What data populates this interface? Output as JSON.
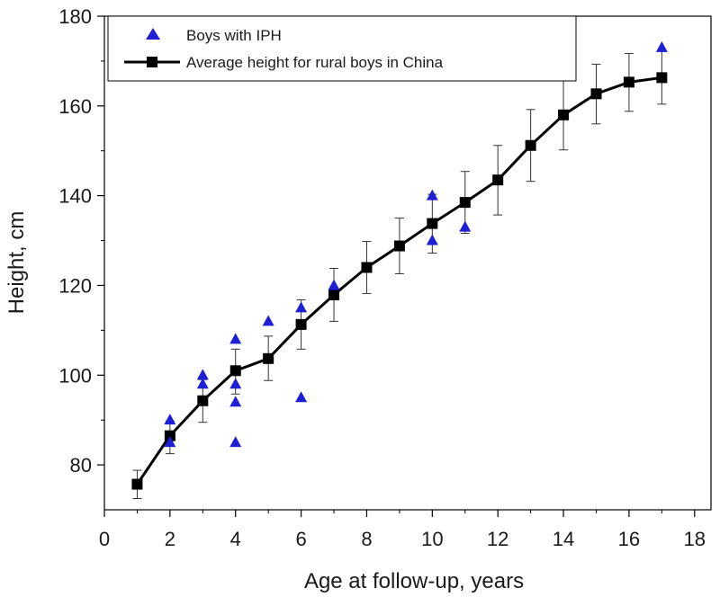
{
  "chart_data": {
    "type": "scatter",
    "xlabel": "Age at follow-up, years",
    "ylabel": "Height, cm",
    "xlim": [
      0,
      18.5
    ],
    "ylim": [
      70,
      180
    ],
    "xticks": [
      0,
      2,
      4,
      6,
      8,
      10,
      12,
      14,
      16,
      18
    ],
    "yticks": [
      80,
      100,
      120,
      140,
      160,
      180
    ],
    "grid": false,
    "legend_position": "top-left",
    "series": [
      {
        "name": "Boys with IPH",
        "type": "scatter",
        "marker": "triangle",
        "color": "#1f1fd6",
        "points": [
          {
            "x": 2,
            "y": 90
          },
          {
            "x": 2,
            "y": 85
          },
          {
            "x": 3,
            "y": 100
          },
          {
            "x": 3,
            "y": 98
          },
          {
            "x": 4,
            "y": 108
          },
          {
            "x": 4,
            "y": 98
          },
          {
            "x": 4,
            "y": 94
          },
          {
            "x": 4,
            "y": 85
          },
          {
            "x": 5,
            "y": 112
          },
          {
            "x": 6,
            "y": 115
          },
          {
            "x": 6,
            "y": 95
          },
          {
            "x": 7,
            "y": 120
          },
          {
            "x": 10,
            "y": 140
          },
          {
            "x": 10,
            "y": 130
          },
          {
            "x": 11,
            "y": 133
          },
          {
            "x": 17,
            "y": 173
          }
        ]
      },
      {
        "name": "Average height for rural boys in China",
        "type": "line",
        "marker": "square",
        "color": "#000000",
        "points": [
          {
            "x": 1,
            "y": 75.7,
            "lo": 72.5,
            "hi": 78.8
          },
          {
            "x": 2,
            "y": 86.5,
            "lo": 82.5,
            "hi": 89.8
          },
          {
            "x": 3,
            "y": 94.3,
            "lo": 89.5,
            "hi": 99.0
          },
          {
            "x": 4,
            "y": 101.0,
            "lo": 95.8,
            "hi": 105.8
          },
          {
            "x": 5,
            "y": 103.7,
            "lo": 98.8,
            "hi": 108.7
          },
          {
            "x": 6,
            "y": 111.3,
            "lo": 105.8,
            "hi": 116.8
          },
          {
            "x": 7,
            "y": 117.9,
            "lo": 112.0,
            "hi": 123.8
          },
          {
            "x": 8,
            "y": 124.0,
            "lo": 118.2,
            "hi": 129.8
          },
          {
            "x": 9,
            "y": 128.8,
            "lo": 122.6,
            "hi": 135.0
          },
          {
            "x": 10,
            "y": 133.8,
            "lo": 127.2,
            "hi": 140.3
          },
          {
            "x": 11,
            "y": 138.5,
            "lo": 131.6,
            "hi": 145.4
          },
          {
            "x": 12,
            "y": 143.5,
            "lo": 135.7,
            "hi": 151.2
          },
          {
            "x": 13,
            "y": 151.2,
            "lo": 143.2,
            "hi": 159.2
          },
          {
            "x": 14,
            "y": 158.0,
            "lo": 150.2,
            "hi": 165.7
          },
          {
            "x": 15,
            "y": 162.7,
            "lo": 156.0,
            "hi": 169.3
          },
          {
            "x": 16,
            "y": 165.3,
            "lo": 158.8,
            "hi": 171.7
          },
          {
            "x": 17,
            "y": 166.3,
            "lo": 160.4,
            "hi": 172.3
          }
        ]
      }
    ]
  }
}
